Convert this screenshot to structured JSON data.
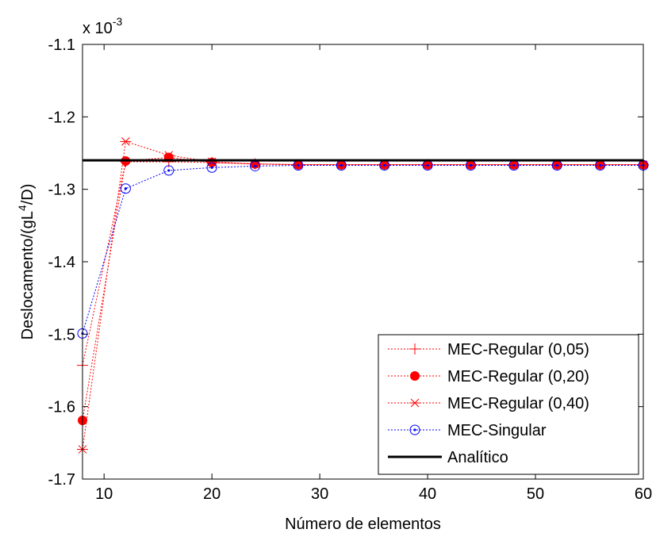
{
  "chart_data": {
    "type": "line",
    "xlabel": "Número de elementos",
    "ylabel_main": "Deslocamento/(gL",
    "ylabel_sup": "4",
    "ylabel_end": "/D)",
    "exponent_base": "x 10",
    "exponent_power": "-3",
    "xlim": [
      8,
      60
    ],
    "ylim": [
      -1.7,
      -1.1
    ],
    "xticks": [
      10,
      20,
      30,
      40,
      50,
      60
    ],
    "xtick_labels": [
      "10",
      "20",
      "30",
      "40",
      "50",
      "60"
    ],
    "yticks": [
      -1.7,
      -1.6,
      -1.5,
      -1.4,
      -1.3,
      -1.2,
      -1.1
    ],
    "ytick_labels": [
      "-1.7",
      "-1.6",
      "-1.5",
      "-1.4",
      "-1.3",
      "-1.2",
      "-1.1"
    ],
    "grid": false,
    "legend_position": "bottom-right",
    "x": [
      8,
      12,
      16,
      20,
      24,
      28,
      32,
      36,
      40,
      44,
      48,
      52,
      56,
      60
    ],
    "series": [
      {
        "name": "MEC-Regular (0,05)",
        "color": "#ff0000",
        "marker": "plus",
        "values": [
          -1.543,
          -1.262,
          -1.262,
          -1.263,
          -1.265,
          -1.266,
          -1.266,
          -1.266,
          -1.266,
          -1.266,
          -1.266,
          -1.266,
          -1.266,
          -1.266
        ]
      },
      {
        "name": "MEC-Regular (0,20)",
        "color": "#ff0000",
        "marker": "filled-circle",
        "values": [
          -1.619,
          -1.261,
          -1.256,
          -1.263,
          -1.265,
          -1.266,
          -1.266,
          -1.266,
          -1.266,
          -1.266,
          -1.266,
          -1.266,
          -1.266,
          -1.266
        ]
      },
      {
        "name": "MEC-Regular (0,40)",
        "color": "#ff0000",
        "marker": "asterisk",
        "values": [
          -1.659,
          -1.234,
          -1.253,
          -1.262,
          -1.265,
          -1.266,
          -1.266,
          -1.266,
          -1.266,
          -1.266,
          -1.266,
          -1.266,
          -1.266,
          -1.266
        ]
      },
      {
        "name": "MEC-Singular",
        "color": "#0000ff",
        "marker": "circle-dot",
        "values": [
          -1.499,
          -1.299,
          -1.274,
          -1.27,
          -1.268,
          -1.267,
          -1.267,
          -1.267,
          -1.267,
          -1.267,
          -1.267,
          -1.267,
          -1.267,
          -1.267
        ]
      },
      {
        "name": "Analítico",
        "color": "#000000",
        "marker": "none",
        "values": [
          -1.26,
          -1.26,
          -1.26,
          -1.26,
          -1.26,
          -1.26,
          -1.26,
          -1.26,
          -1.26,
          -1.26,
          -1.26,
          -1.26,
          -1.26,
          -1.26
        ]
      }
    ]
  }
}
